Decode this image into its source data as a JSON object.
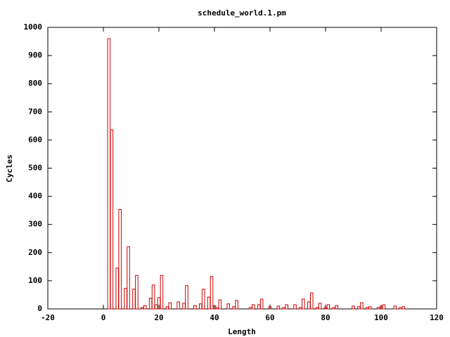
{
  "chart_data": {
    "type": "bar",
    "title": "schedule_world.1.pm",
    "xlabel": "Length",
    "ylabel": "Cycles",
    "x": [
      2,
      3,
      5,
      6,
      8,
      9,
      11,
      12,
      14,
      15,
      17,
      18,
      19,
      20,
      21,
      23,
      24,
      27,
      29,
      30,
      33,
      35,
      36,
      38,
      39,
      40,
      41,
      42,
      45,
      47,
      48,
      53,
      54,
      56,
      57,
      60,
      63,
      65,
      66,
      69,
      71,
      72,
      74,
      75,
      77,
      78,
      80,
      81,
      83,
      84,
      90,
      92,
      93,
      95,
      96,
      99,
      100,
      101,
      105,
      107,
      108
    ],
    "values": [
      960,
      636,
      145,
      353,
      73,
      221,
      70,
      119,
      5,
      12,
      38,
      85,
      15,
      40,
      119,
      8,
      22,
      25,
      20,
      83,
      12,
      18,
      70,
      42,
      115,
      10,
      5,
      32,
      18,
      8,
      30,
      5,
      15,
      15,
      35,
      8,
      10,
      5,
      15,
      15,
      5,
      35,
      25,
      57,
      5,
      20,
      5,
      15,
      5,
      12,
      10,
      8,
      22,
      5,
      8,
      5,
      8,
      15,
      10,
      5,
      8
    ],
    "color": "#cc0000",
    "xlim": [
      -20,
      120
    ],
    "xticks": [
      -20,
      0,
      20,
      40,
      60,
      80,
      100,
      120
    ],
    "ylim": [
      0,
      1000
    ],
    "yticks": [
      0,
      100,
      200,
      300,
      400,
      500,
      600,
      700,
      800,
      900,
      1000
    ],
    "grid": false
  }
}
